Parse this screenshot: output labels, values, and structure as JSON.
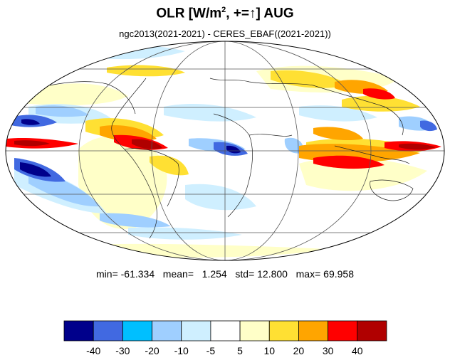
{
  "title": {
    "prefix": "OLR [W/m",
    "sup": "2",
    "middle": ", +=",
    "arrow": "↑",
    "suffix": "] AUG"
  },
  "subtitle": "ngc2013(2021-2021) - CERES_EBAF((2021-2021))",
  "stats": {
    "min_label": "min=",
    "min": "-61.334",
    "mean_label": "mean=",
    "mean": "1.254",
    "std_label": "std=",
    "std": "12.800",
    "max_label": "max=",
    "max": "69.958"
  },
  "colorbar": {
    "colors": [
      "#00008b",
      "#4169e1",
      "#00bfff",
      "#9fcfff",
      "#cfefff",
      "#ffffff",
      "#ffffc8",
      "#ffe033",
      "#ffa500",
      "#ff0000",
      "#b00000"
    ],
    "labels": [
      "-40",
      "-30",
      "-20",
      "-10",
      "-5",
      "5",
      "10",
      "20",
      "30",
      "40"
    ]
  }
}
